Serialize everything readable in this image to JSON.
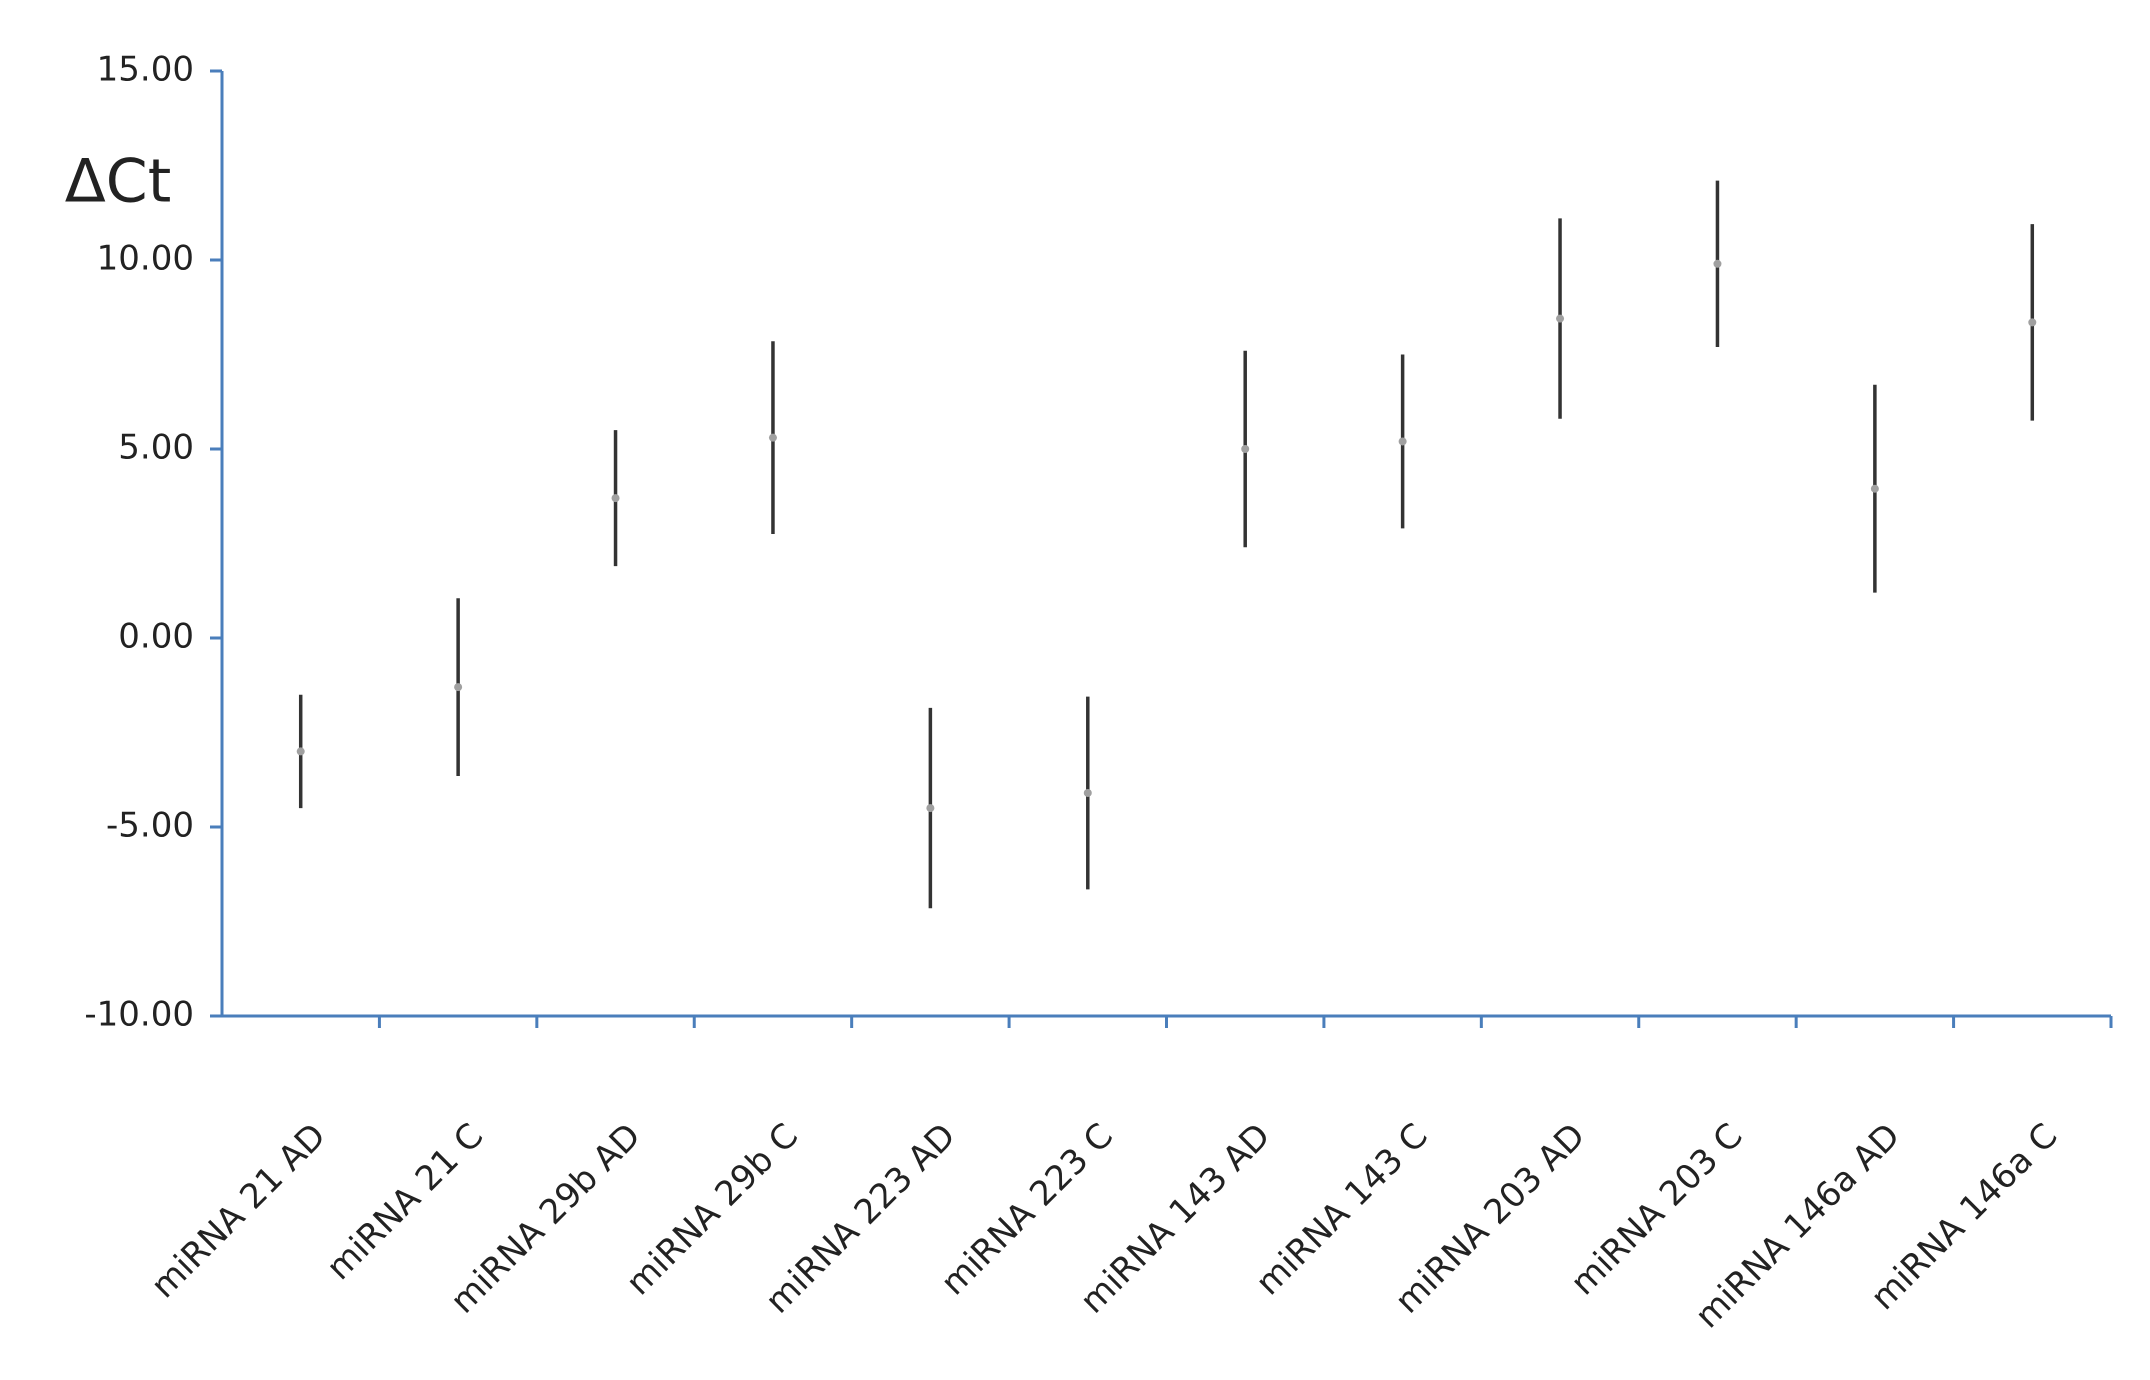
{
  "chart_data": {
    "type": "errorbar",
    "y_label": "ΔCt",
    "categories": [
      "miRNA 21 AD",
      "miRNA 21 C",
      "miRNA 29b AD",
      "miRNA 29b C",
      "miRNA 223 AD",
      "miRNA 223 C",
      "miRNA 143 AD",
      "miRNA 143 C",
      "miRNA 203 AD",
      "miRNA 203 C",
      "miRNA 146a AD",
      "miRNA 146a C"
    ],
    "values": [
      -3.0,
      -1.3,
      3.7,
      5.3,
      -4.5,
      -4.1,
      5.0,
      5.2,
      8.45,
      9.9,
      3.95,
      8.35
    ],
    "errors": [
      1.5,
      2.35,
      1.8,
      2.55,
      2.65,
      2.55,
      2.6,
      2.3,
      2.65,
      2.2,
      2.75,
      2.6
    ],
    "color": "#333333",
    "marker_color": "#a0a0a0",
    "axis_color": "#4a7ebb",
    "ylim": [
      -10,
      15
    ],
    "yticks": [
      {
        "value": -10,
        "label": "-10.00"
      },
      {
        "value": -5,
        "label": "-5.00"
      },
      {
        "value": 0,
        "label": "0.00"
      },
      {
        "value": 5,
        "label": "5.00"
      },
      {
        "value": 10,
        "label": "10.00"
      },
      {
        "value": 15,
        "label": "15.00"
      }
    ],
    "grid": false
  }
}
